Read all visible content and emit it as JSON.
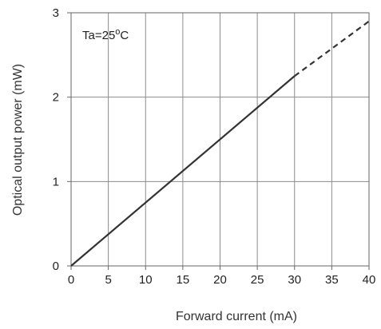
{
  "chart_data": {
    "type": "line",
    "title": "",
    "xlabel": "Forward current  (mA)",
    "ylabel": "Optical output power  (mW)",
    "xlim": [
      0,
      40
    ],
    "ylim": [
      0,
      3
    ],
    "x_ticks": [
      0,
      5,
      10,
      15,
      20,
      25,
      30,
      35,
      40
    ],
    "y_ticks": [
      0,
      1,
      2,
      3
    ],
    "grid": true,
    "annotation": {
      "prefix": "Ta=25",
      "superscript": "o",
      "suffix": "C"
    },
    "series": [
      {
        "style": "solid",
        "color": "#333333",
        "x": [
          0,
          30
        ],
        "y": [
          0,
          2.25
        ]
      },
      {
        "style": "dashed",
        "color": "#333333",
        "x": [
          30,
          40
        ],
        "y": [
          2.25,
          2.9
        ]
      }
    ]
  }
}
